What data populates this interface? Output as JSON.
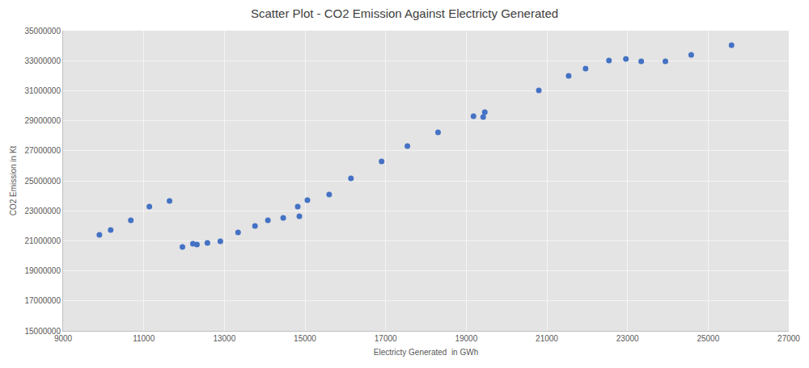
{
  "chart_data": {
    "type": "scatter",
    "title": "Scatter Plot - CO2 Emission Against Electricty Generated",
    "x_label": "Electricty Generated  in GWh",
    "y_label": "CO2 Emission in Kt",
    "x": [
      9900,
      10180,
      10680,
      11140,
      11640,
      11960,
      12220,
      12320,
      12580,
      12900,
      13340,
      13760,
      14080,
      14460,
      14820,
      14860,
      15060,
      15600,
      16140,
      16900,
      17540,
      18300,
      19180,
      19420,
      19460,
      20800,
      21540,
      21960,
      22540,
      22960,
      23340,
      23940,
      24580,
      25580
    ],
    "values": [
      21400000,
      21720000,
      22370000,
      23280000,
      23660000,
      20590000,
      20800000,
      20750000,
      20860000,
      20970000,
      21560000,
      21990000,
      22370000,
      22530000,
      23280000,
      22630000,
      23710000,
      24090000,
      25160000,
      26290000,
      27310000,
      28230000,
      29300000,
      29250000,
      29570000,
      31020000,
      31990000,
      32470000,
      33010000,
      33120000,
      32960000,
      32960000,
      33390000,
      34030000
    ],
    "color": "#4472c4",
    "marker": "circle",
    "xlim": [
      9000,
      27000
    ],
    "xticks": [
      9000,
      11000,
      13000,
      15000,
      17000,
      19000,
      21000,
      23000,
      25000,
      27000
    ],
    "ylim": [
      15000000,
      35000000
    ],
    "yticks": [
      15000000,
      17000000,
      19000000,
      21000000,
      23000000,
      25000000,
      27000000,
      29000000,
      31000000,
      33000000,
      35000000
    ],
    "grid": true
  }
}
